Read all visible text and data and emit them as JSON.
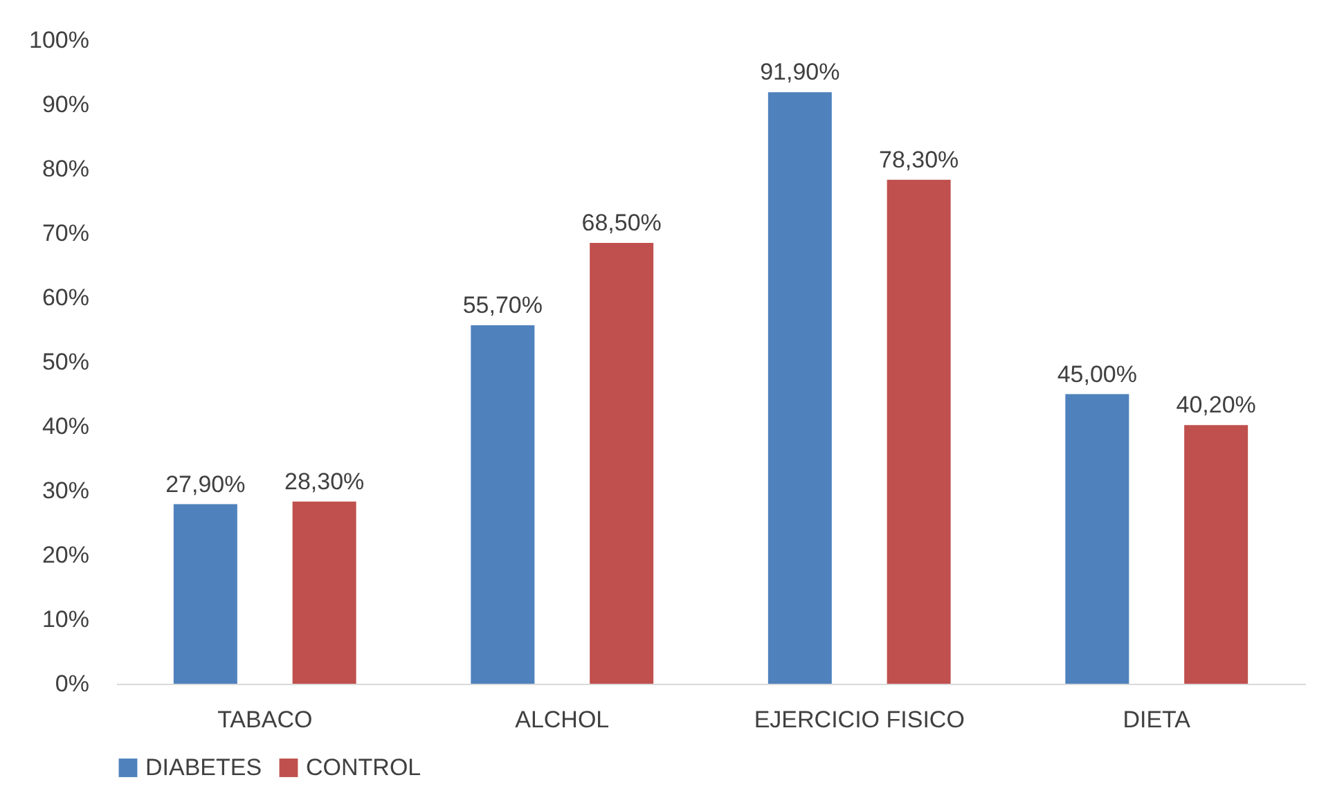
{
  "chart_data": {
    "type": "bar",
    "categories": [
      "TABACO",
      "ALCHOL",
      "EJERCICIO FISICO",
      "DIETA"
    ],
    "series": [
      {
        "name": "DIABETES",
        "color": "#4f81bd",
        "values": [
          27.9,
          55.7,
          91.9,
          45.0
        ],
        "value_labels": [
          "27,90%",
          "55,70%",
          "91,90%",
          "45,00%"
        ]
      },
      {
        "name": "CONTROL",
        "color": "#c0504d",
        "values": [
          28.3,
          68.5,
          78.3,
          40.2
        ],
        "value_labels": [
          "28,30%",
          "68,50%",
          "78,30%",
          "40,20%"
        ]
      }
    ],
    "ylim": [
      0,
      100
    ],
    "yticks": [
      {
        "value": 0,
        "label": "0%"
      },
      {
        "value": 10,
        "label": "10%"
      },
      {
        "value": 20,
        "label": "20%"
      },
      {
        "value": 30,
        "label": "30%"
      },
      {
        "value": 40,
        "label": "40%"
      },
      {
        "value": 50,
        "label": "50%"
      },
      {
        "value": 60,
        "label": "60%"
      },
      {
        "value": 70,
        "label": "70%"
      },
      {
        "value": 80,
        "label": "80%"
      },
      {
        "value": 90,
        "label": "90%"
      },
      {
        "value": 100,
        "label": "100%"
      }
    ],
    "legend": "bottom"
  }
}
